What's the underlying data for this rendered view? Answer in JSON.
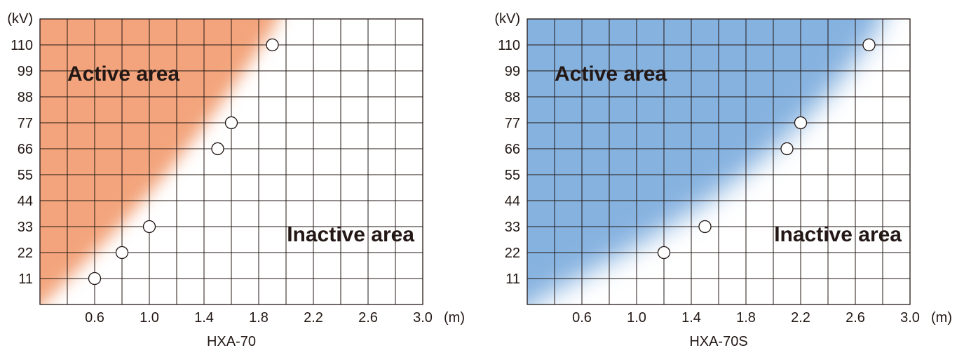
{
  "chart_data": [
    {
      "type": "scatter",
      "title": "",
      "model_label": "HXA-70",
      "x_unit": "(m)",
      "y_unit": "(kV)",
      "xlim": [
        0.2,
        3.0
      ],
      "ylim": [
        0,
        121
      ],
      "x_ticks": [
        0.6,
        1.0,
        1.4,
        1.8,
        2.2,
        2.6,
        3.0
      ],
      "x_tick_labels": [
        "0.6",
        "1.0",
        "1.4",
        "1.8",
        "2.2",
        "2.6",
        "3.0"
      ],
      "y_ticks": [
        11,
        22,
        33,
        44,
        55,
        66,
        77,
        88,
        99,
        110
      ],
      "y_tick_labels": [
        "11",
        "22",
        "33",
        "44",
        "55",
        "66",
        "77",
        "88",
        "99",
        "110"
      ],
      "grid": true,
      "active_label": "Active area",
      "inactive_label": "Inactive area",
      "active_color": "#f3a47c",
      "points": [
        {
          "x": 0.6,
          "y": 11
        },
        {
          "x": 0.8,
          "y": 22
        },
        {
          "x": 1.0,
          "y": 33
        },
        {
          "x": 1.5,
          "y": 66
        },
        {
          "x": 1.6,
          "y": 77
        },
        {
          "x": 1.9,
          "y": 110
        }
      ]
    },
    {
      "type": "scatter",
      "title": "",
      "model_label": "HXA-70S",
      "x_unit": "(m)",
      "y_unit": "(kV)",
      "xlim": [
        0.2,
        3.0
      ],
      "ylim": [
        0,
        121
      ],
      "x_ticks": [
        0.6,
        1.0,
        1.4,
        1.8,
        2.2,
        2.6,
        3.0
      ],
      "x_tick_labels": [
        "0.6",
        "1.0",
        "1.4",
        "1.8",
        "2.2",
        "2.6",
        "3.0"
      ],
      "y_ticks": [
        11,
        22,
        33,
        44,
        55,
        66,
        77,
        88,
        99,
        110
      ],
      "y_tick_labels": [
        "11",
        "22",
        "33",
        "44",
        "55",
        "66",
        "77",
        "88",
        "99",
        "110"
      ],
      "grid": true,
      "active_label": "Active area",
      "inactive_label": "Inactive area",
      "active_color": "#86b2e0",
      "points": [
        {
          "x": 1.2,
          "y": 22
        },
        {
          "x": 1.5,
          "y": 33
        },
        {
          "x": 2.1,
          "y": 66
        },
        {
          "x": 2.2,
          "y": 77
        },
        {
          "x": 2.7,
          "y": 110
        }
      ]
    }
  ]
}
